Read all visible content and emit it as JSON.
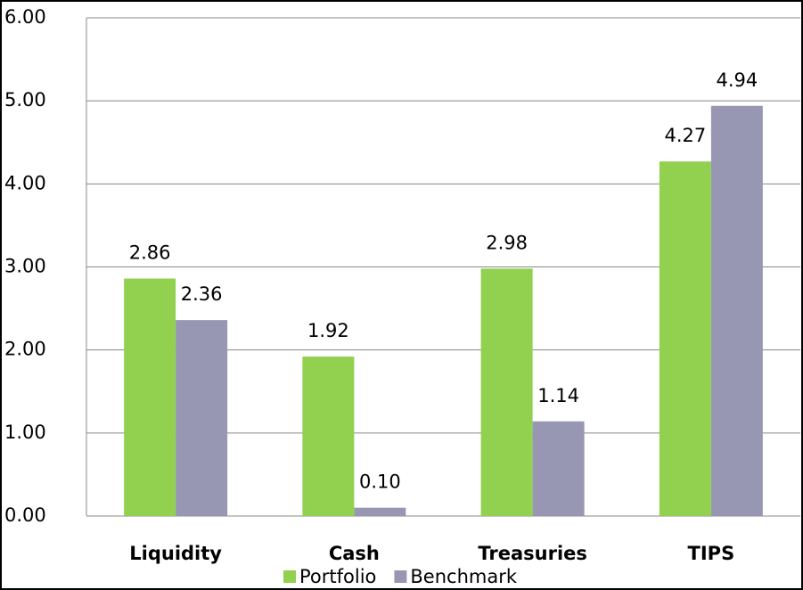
{
  "chart_data": {
    "type": "bar",
    "categories": [
      "Liquidity",
      "Cash",
      "Treasuries",
      "TIPS"
    ],
    "series": [
      {
        "name": "Portfolio",
        "color": "#92d050",
        "values": [
          2.86,
          1.92,
          2.98,
          4.27
        ],
        "value_labels": [
          "2.86",
          "1.92",
          "2.98",
          "4.27"
        ]
      },
      {
        "name": "Benchmark",
        "color": "#9797b3",
        "values": [
          2.36,
          0.1,
          1.14,
          4.94
        ],
        "value_labels": [
          "2.36",
          "0.10",
          "1.14",
          "4.94"
        ]
      }
    ],
    "ylim": [
      0,
      6
    ],
    "yticks": [
      {
        "value": 0,
        "label": "0.00"
      },
      {
        "value": 1,
        "label": "1.00"
      },
      {
        "value": 2,
        "label": "2.00"
      },
      {
        "value": 3,
        "label": "3.00"
      },
      {
        "value": 4,
        "label": "4.00"
      },
      {
        "value": 5,
        "label": "5.00"
      },
      {
        "value": 6,
        "label": "6.00"
      }
    ],
    "grid": true,
    "legend": "bottom"
  }
}
